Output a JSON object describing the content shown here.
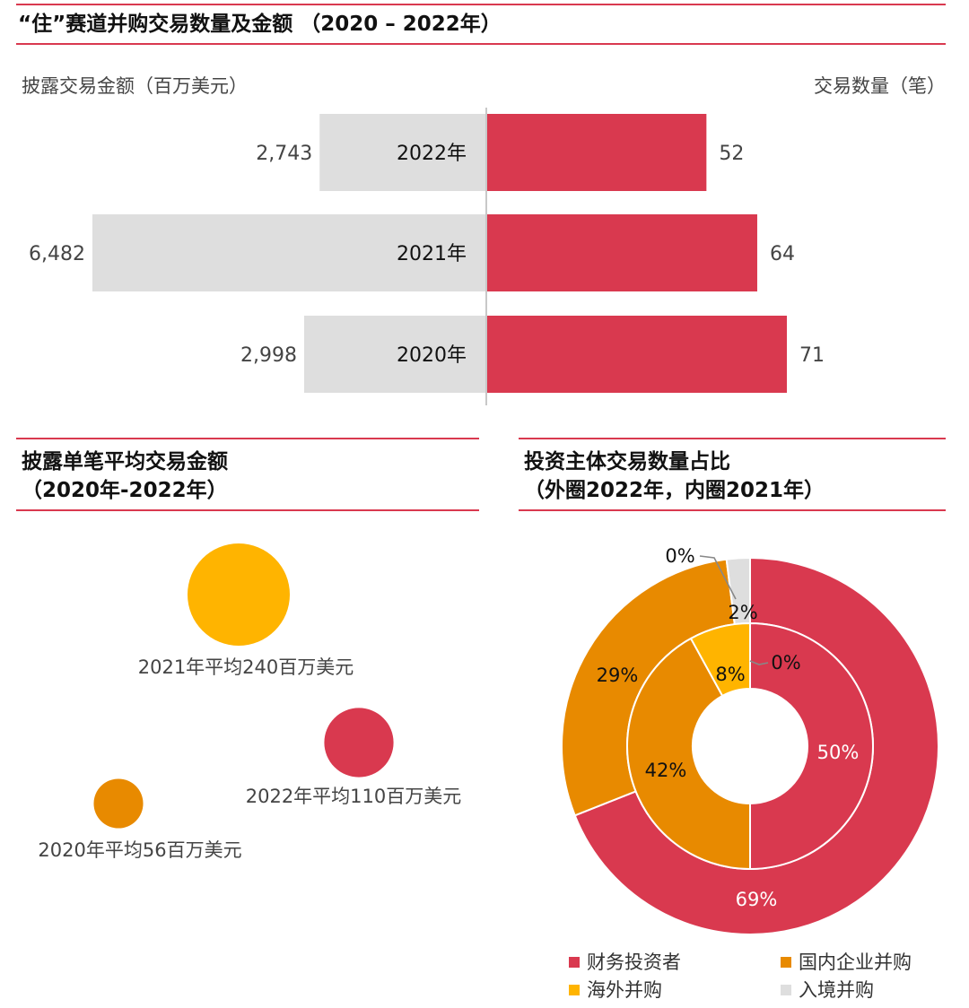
{
  "top": {
    "title": "“住”赛道并购交易数量及金额 （2020 – 2022年）",
    "left_axis_label": "披露交易金额（百万美元）",
    "right_axis_label": "交易数量（笔）"
  },
  "bubbles": {
    "title_line1": "披露单笔平均交易金额",
    "title_line2": "（2020年-2022年）"
  },
  "donut": {
    "title_line1": "投资主体交易数量占比",
    "title_line2": "（外圈2022年，内圈2021年）"
  },
  "legend": [
    {
      "label": "财务投资者",
      "color": "#d9394f"
    },
    {
      "label": "国内企业并购",
      "color": "#e88a00"
    },
    {
      "label": "海外并购",
      "color": "#ffb400"
    },
    {
      "label": "入境并购",
      "color": "#dedede"
    }
  ],
  "chart_data": [
    {
      "type": "bar",
      "orientation": "horizontal-diverging",
      "categories": [
        "2022年",
        "2021年",
        "2020年"
      ],
      "series": [
        {
          "name": "披露交易金额（百万美元）",
          "values": [
            2743,
            6482,
            2998
          ],
          "labels": [
            "2,743",
            "6,482",
            "2,998"
          ],
          "color": "#dedede"
        },
        {
          "name": "交易数量（笔）",
          "values": [
            52,
            64,
            71
          ],
          "labels": [
            "52",
            "64",
            "71"
          ],
          "color": "#d9394f"
        }
      ]
    },
    {
      "type": "scatter",
      "subtype": "bubble",
      "points": [
        {
          "year": "2021",
          "value": 240,
          "label": "2021年平均240百万美元",
          "color": "#ffb400"
        },
        {
          "year": "2022",
          "value": 110,
          "label": "2022年平均110百万美元",
          "color": "#d9394f"
        },
        {
          "year": "2020",
          "value": 56,
          "label": "2020年平均56百万美元",
          "color": "#e88a00"
        }
      ]
    },
    {
      "type": "pie",
      "subtype": "donut",
      "categories": [
        "财务投资者",
        "国内企业并购",
        "海外并购",
        "入境并购"
      ],
      "colors": [
        "#d9394f",
        "#e88a00",
        "#ffb400",
        "#dedede"
      ],
      "series": [
        {
          "name": "外圈2022年",
          "values": [
            69,
            29,
            0,
            2
          ],
          "labels": [
            "69%",
            "29%",
            "0%",
            "2%"
          ]
        },
        {
          "name": "内圈2021年",
          "values": [
            50,
            42,
            8,
            0
          ],
          "labels": [
            "50%",
            "42%",
            "8%",
            "0%"
          ]
        }
      ]
    }
  ]
}
